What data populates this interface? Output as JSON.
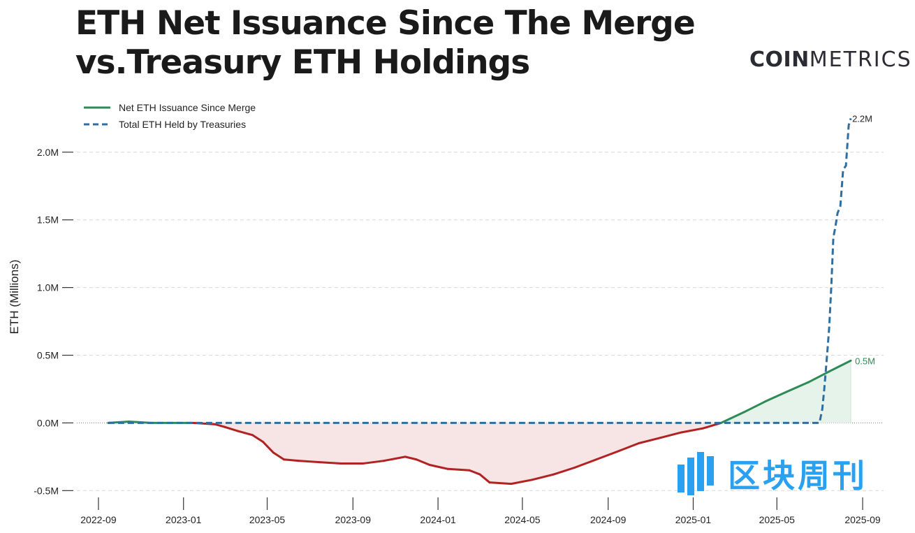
{
  "header": {
    "title_line1": "ETH Net Issuance Since The Merge",
    "title_line2": "vs.Treasury ETH Holdings",
    "brand_bold": "COIN",
    "brand_thin": "METRICS"
  },
  "watermark": {
    "text": "区块周刊"
  },
  "colors": {
    "positive": "#2e8b57",
    "negative": "#b22222",
    "positive_fill": "#e6f3ea",
    "negative_fill": "#f7e4e4",
    "treasury": "#2d6fa3",
    "grid": "#d8d8d8",
    "watermark": "#2aa1f0"
  },
  "chart_data": {
    "type": "line",
    "ylabel": "ETH (Millions)",
    "ylim": [
      -0.55,
      2.35
    ],
    "yticks": [
      -0.5,
      0.0,
      0.5,
      1.0,
      1.5,
      2.0
    ],
    "ytick_labels": [
      "-0.5M",
      "0.0M",
      "0.5M",
      "1.0M",
      "1.5M",
      "2.0M"
    ],
    "xlim": [
      "2022-08-01",
      "2025-10-01"
    ],
    "xticks": [
      "2022-09-01",
      "2023-01-01",
      "2023-05-01",
      "2023-09-01",
      "2024-01-01",
      "2024-05-01",
      "2024-09-01",
      "2025-01-01",
      "2025-05-01",
      "2025-09-01"
    ],
    "xtick_labels": [
      "2022-09",
      "2023-01",
      "2023-05",
      "2023-09",
      "2024-01",
      "2024-05",
      "2024-09",
      "2025-01",
      "2025-05",
      "2025-09"
    ],
    "grid": "horizontal dashed",
    "legend_position": "top-left",
    "series": [
      {
        "name": "Net ETH Issuance Since Merge",
        "style": "solid",
        "end_label": "0.5M",
        "points": [
          [
            "2022-09-15",
            0.0
          ],
          [
            "2022-10-15",
            0.01
          ],
          [
            "2022-11-15",
            0.0
          ],
          [
            "2022-12-15",
            0.0
          ],
          [
            "2023-01-15",
            0.0
          ],
          [
            "2023-02-15",
            -0.01
          ],
          [
            "2023-03-01",
            -0.03
          ],
          [
            "2023-03-20",
            -0.06
          ],
          [
            "2023-04-10",
            -0.09
          ],
          [
            "2023-04-25",
            -0.14
          ],
          [
            "2023-05-10",
            -0.22
          ],
          [
            "2023-05-25",
            -0.27
          ],
          [
            "2023-06-15",
            -0.28
          ],
          [
            "2023-07-15",
            -0.29
          ],
          [
            "2023-08-15",
            -0.3
          ],
          [
            "2023-09-15",
            -0.3
          ],
          [
            "2023-10-15",
            -0.28
          ],
          [
            "2023-11-15",
            -0.25
          ],
          [
            "2023-12-01",
            -0.27
          ],
          [
            "2023-12-20",
            -0.31
          ],
          [
            "2024-01-15",
            -0.34
          ],
          [
            "2024-02-15",
            -0.35
          ],
          [
            "2024-03-01",
            -0.38
          ],
          [
            "2024-03-15",
            -0.44
          ],
          [
            "2024-04-15",
            -0.45
          ],
          [
            "2024-05-15",
            -0.42
          ],
          [
            "2024-06-15",
            -0.38
          ],
          [
            "2024-07-15",
            -0.33
          ],
          [
            "2024-08-15",
            -0.27
          ],
          [
            "2024-09-15",
            -0.21
          ],
          [
            "2024-10-15",
            -0.15
          ],
          [
            "2024-11-15",
            -0.11
          ],
          [
            "2024-12-15",
            -0.07
          ],
          [
            "2025-01-15",
            -0.04
          ],
          [
            "2025-02-10",
            0.0
          ],
          [
            "2025-03-15",
            0.08
          ],
          [
            "2025-04-15",
            0.16
          ],
          [
            "2025-05-15",
            0.23
          ],
          [
            "2025-06-15",
            0.3
          ],
          [
            "2025-07-15",
            0.38
          ],
          [
            "2025-08-15",
            0.46
          ]
        ]
      },
      {
        "name": "Total ETH Held by Treasuries",
        "style": "dashed",
        "end_label": "2.2M",
        "points": [
          [
            "2022-09-15",
            0.0
          ],
          [
            "2025-06-01",
            0.0
          ],
          [
            "2025-07-01",
            0.0
          ],
          [
            "2025-07-05",
            0.1
          ],
          [
            "2025-07-08",
            0.25
          ],
          [
            "2025-07-12",
            0.5
          ],
          [
            "2025-07-15",
            0.7
          ],
          [
            "2025-07-18",
            1.0
          ],
          [
            "2025-07-21",
            1.37
          ],
          [
            "2025-07-24",
            1.45
          ],
          [
            "2025-07-27",
            1.55
          ],
          [
            "2025-07-31",
            1.6
          ],
          [
            "2025-08-04",
            1.87
          ],
          [
            "2025-08-08",
            1.9
          ],
          [
            "2025-08-12",
            2.2
          ],
          [
            "2025-08-15",
            2.25
          ]
        ]
      }
    ]
  }
}
